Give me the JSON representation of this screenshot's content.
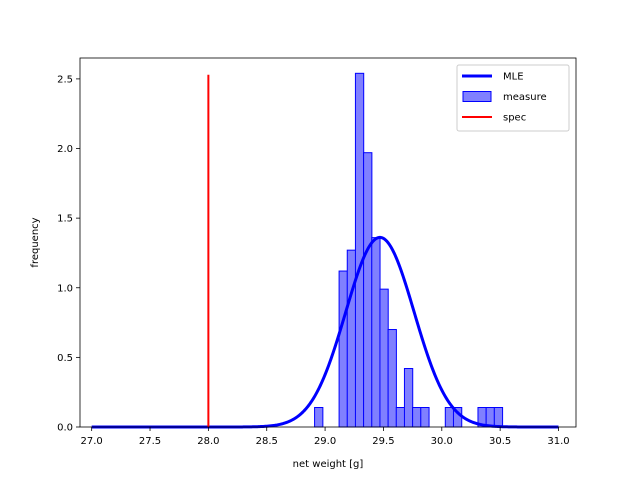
{
  "chart_data": {
    "type": "bar",
    "title": "",
    "xlabel": "net weight [g]",
    "ylabel": "frequency",
    "xlim": [
      26.9,
      31.15
    ],
    "ylim": [
      0,
      2.65
    ],
    "xticks": [
      "27.0",
      "27.5",
      "28.0",
      "28.5",
      "29.0",
      "29.5",
      "30.0",
      "30.5",
      "31.0"
    ],
    "yticks": [
      "0.0",
      "0.5",
      "1.0",
      "1.5",
      "2.0",
      "2.5"
    ],
    "grid": false,
    "legend_placement": "top-right",
    "colors": {
      "histogram_fill": "#8080ff",
      "histogram_edge": "#0000ff",
      "mle_line": "#0000ff",
      "spec_line": "#ff0000"
    },
    "legend": [
      {
        "label": "MLE",
        "kind": "line",
        "color": "#0000ff"
      },
      {
        "label": "measure",
        "kind": "patch",
        "color": "#8080ff"
      },
      {
        "label": "spec",
        "kind": "line",
        "color": "#ff0000"
      }
    ],
    "histogram": {
      "name": "measure",
      "bin_width": 0.071,
      "bin_starts": [
        28.91,
        29.12,
        29.19,
        29.26,
        29.33,
        29.4,
        29.47,
        29.54,
        29.61,
        29.68,
        29.75,
        29.82,
        30.03,
        30.1,
        30.31,
        30.38,
        30.45
      ],
      "values": [
        0.14,
        1.12,
        1.27,
        2.54,
        1.97,
        1.36,
        0.99,
        0.7,
        0.14,
        0.42,
        0.14,
        0.14,
        0.14,
        0.14,
        0.14,
        0.14,
        0.14
      ]
    },
    "mle": {
      "name": "MLE",
      "mean": 29.47,
      "std": 0.293,
      "x_range": [
        27.0,
        31.0
      ]
    },
    "spec": {
      "name": "spec",
      "x": 28.0,
      "y_range": [
        0,
        2.53
      ]
    }
  }
}
